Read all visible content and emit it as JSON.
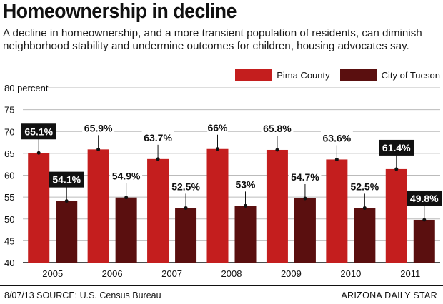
{
  "title": "Homeownership in decline",
  "subtitle": "A decline in homeownership, and a more transient population of residents, can diminish neighborhood stability and undermine outcomes for children, housing advocates say.",
  "footer": {
    "date_source": "8/07/13  SOURCE: U.S. Census Bureau",
    "credit": "ARIZONA DAILY STAR"
  },
  "colors": {
    "pima": "#c41e1e",
    "tucson": "#5a0f0f",
    "highlight_box": "#111111",
    "grid": "#bbbbbb"
  },
  "chart_data": {
    "type": "bar",
    "title": "Homeownership in decline",
    "categories": [
      "2005",
      "2006",
      "2007",
      "2008",
      "2009",
      "2010",
      "2011"
    ],
    "series": [
      {
        "name": "Pima County",
        "values": [
          65.1,
          65.9,
          63.7,
          66,
          65.8,
          63.6,
          61.4
        ],
        "labels": [
          "65.1%",
          "65.9%",
          "63.7%",
          "66%",
          "65.8%",
          "63.6%",
          "61.4%"
        ],
        "highlighted": [
          true,
          false,
          false,
          false,
          false,
          false,
          true
        ]
      },
      {
        "name": "City of Tucson",
        "values": [
          54.1,
          54.9,
          52.5,
          53,
          54.7,
          52.5,
          49.8
        ],
        "labels": [
          "54.1%",
          "54.9%",
          "52.5%",
          "53%",
          "54.7%",
          "52.5%",
          "49.8%"
        ],
        "highlighted": [
          true,
          false,
          false,
          false,
          false,
          false,
          true
        ]
      }
    ],
    "yticks": [
      "40",
      "45",
      "50",
      "55",
      "60",
      "65",
      "70",
      "75",
      "80 percent"
    ],
    "ylim": [
      40,
      80
    ],
    "xlabel": "",
    "ylabel": "percent",
    "grid": true,
    "legend": "top-right"
  }
}
